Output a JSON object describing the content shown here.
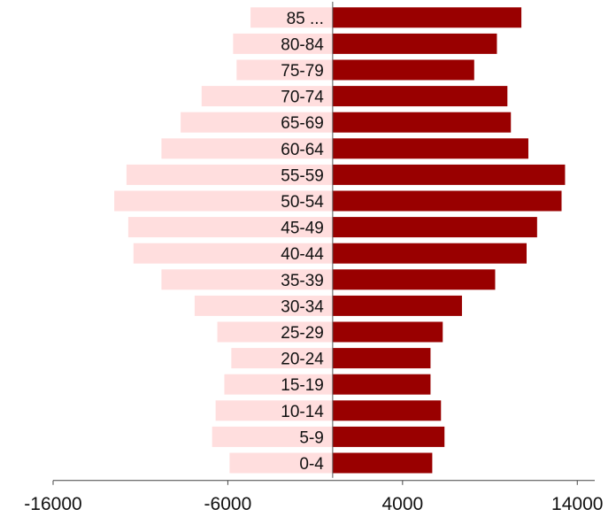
{
  "chart_data": {
    "type": "bar",
    "orientation": "horizontal",
    "categories": [
      "85 ...",
      "80-84",
      "75-79",
      "70-74",
      "65-69",
      "60-64",
      "55-59",
      "50-54",
      "45-49",
      "40-44",
      "35-39",
      "30-34",
      "25-29",
      "20-24",
      "15-19",
      "10-14",
      "5-9",
      "0-4"
    ],
    "series": [
      {
        "color": "#ffdede",
        "values": [
          -4700,
          -5700,
          -5500,
          -7500,
          -8700,
          -9800,
          -11800,
          -12500,
          -11700,
          -11400,
          -9800,
          -7900,
          -6600,
          -5800,
          -6200,
          -6700,
          -6900,
          -5900
        ]
      },
      {
        "color": "#990000",
        "values": [
          10800,
          9400,
          8100,
          10000,
          10200,
          11200,
          13300,
          13100,
          11700,
          11100,
          9300,
          7400,
          6300,
          5600,
          5600,
          6200,
          6400,
          5700
        ]
      }
    ],
    "xlim": [
      -16000,
      15000
    ],
    "xticks": [
      -16000,
      -6000,
      4000,
      14000
    ],
    "xtick_labels": [
      "-16000",
      "-6000",
      "4000",
      "14000"
    ],
    "grid": false,
    "legend": "none"
  }
}
